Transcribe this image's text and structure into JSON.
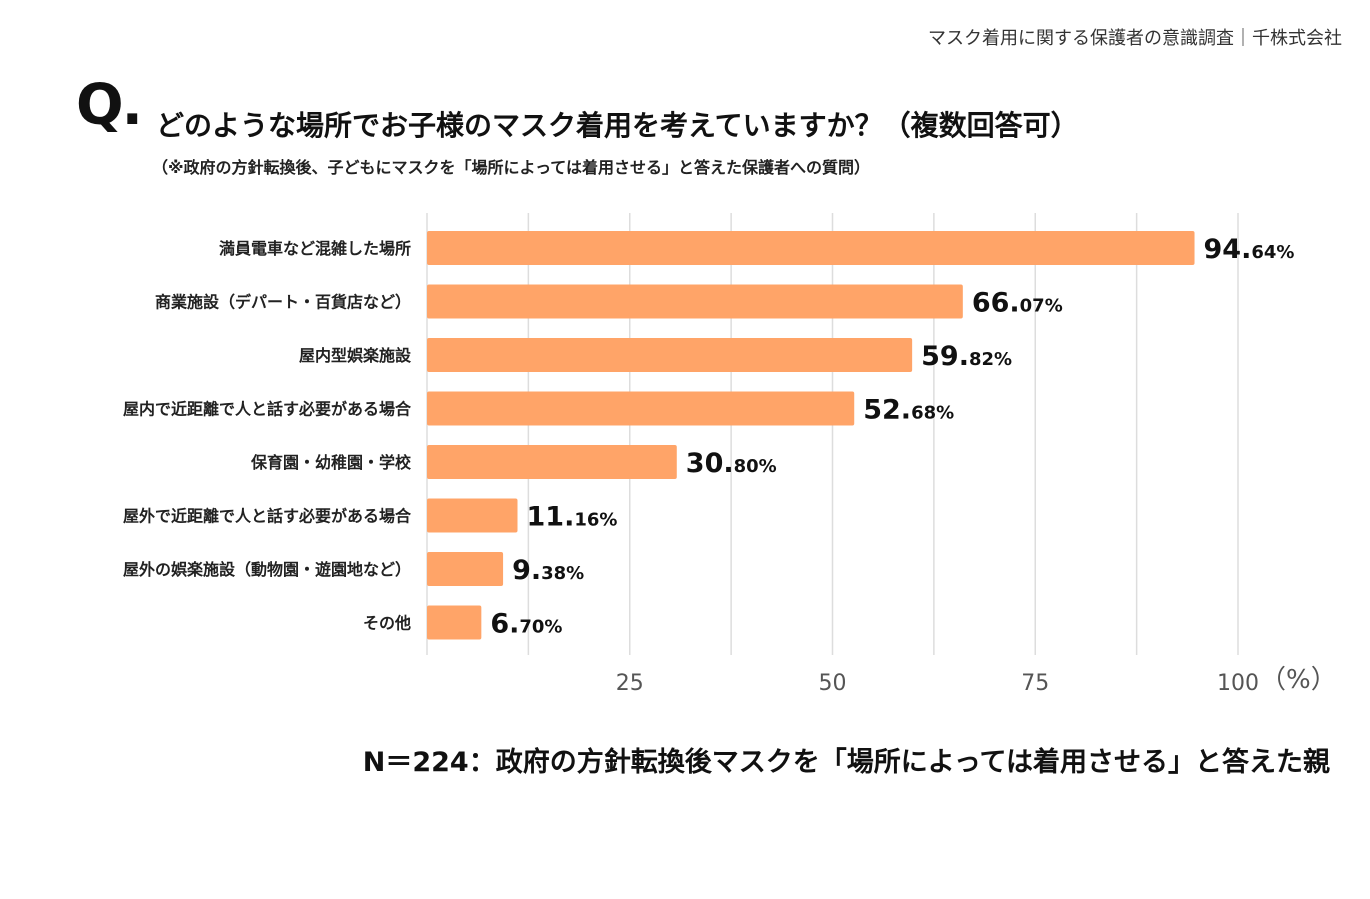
{
  "header": {
    "credit": "マスク着用に関する保護者の意識調査｜千株式会社"
  },
  "question": {
    "mark": "Q.",
    "text": "どのような場所でお子様のマスク着用を考えていますか？（複数回答可）",
    "note": "（※政府の方針転換後、子どもにマスクを「場所によっては着用させる」と答えた保護者への質問）"
  },
  "footer": {
    "text": "N＝224：政府の方針転換後マスクを「場所によっては着用させる」と答えた親"
  },
  "colors": {
    "bar": "#FFA468",
    "grid": "#dddddd"
  },
  "chart_data": {
    "type": "bar",
    "orientation": "horizontal",
    "title": "どのような場所でお子様のマスク着用を考えていますか？（複数回答可）",
    "categories": [
      "満員電車など混雑した場所",
      "商業施設（デパート・百貨店など）",
      "屋内型娯楽施設",
      "屋内で近距離で人と話す必要がある場合",
      "保育園・幼稚園・学校",
      "屋外で近距離で人と話す必要がある場合",
      "屋外の娯楽施設（動物園・遊園地など）",
      "その他"
    ],
    "values": [
      94.64,
      66.07,
      59.82,
      52.68,
      30.8,
      11.16,
      9.38,
      6.7
    ],
    "value_labels": [
      {
        "int": "94.",
        "dec": "64%"
      },
      {
        "int": "66.",
        "dec": "07%"
      },
      {
        "int": "59.",
        "dec": "82%"
      },
      {
        "int": "52.",
        "dec": "68%"
      },
      {
        "int": "30.",
        "dec": "80%"
      },
      {
        "int": "11.",
        "dec": "16%"
      },
      {
        "int": "9.",
        "dec": "38%"
      },
      {
        "int": "6.",
        "dec": "70%"
      }
    ],
    "xlim": [
      0,
      100
    ],
    "xticks": [
      25,
      50,
      75,
      100
    ],
    "xtick_labels": [
      "25",
      "50",
      "75",
      "100"
    ],
    "unit_label": "（%）",
    "grid": true
  }
}
